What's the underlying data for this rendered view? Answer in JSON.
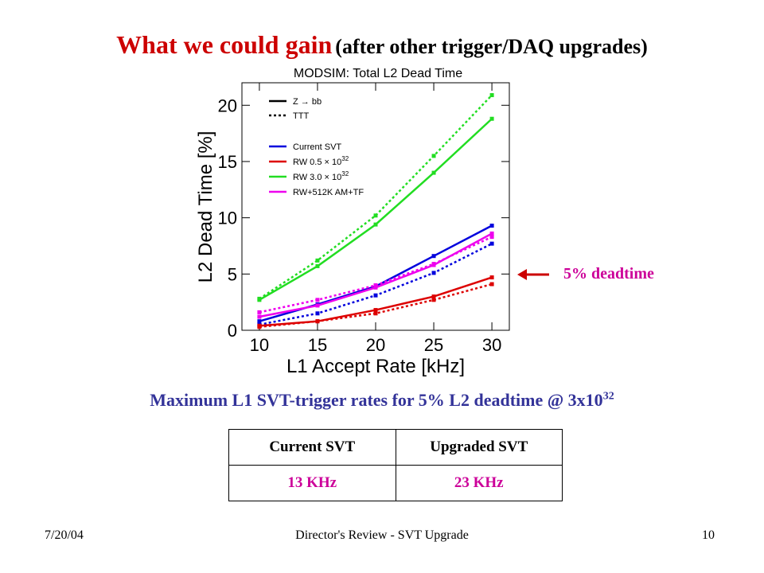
{
  "slide": {
    "title_main": "What we could gain",
    "title_sub": "(after other trigger/DAQ upgrades)",
    "annotation": "5% deadtime",
    "subtitle_text": "Maximum L1 SVT-trigger rates for 5% L2 deadtime @ 3x10",
    "subtitle_exp": "32",
    "table": {
      "headers": [
        "Current SVT",
        "Upgraded SVT"
      ],
      "values": [
        "13 KHz",
        "23 KHz"
      ]
    },
    "footer": {
      "date": "7/20/04",
      "center": "Director's Review - SVT Upgrade",
      "page": "10"
    }
  },
  "chart_data": {
    "type": "line",
    "title": "MODSIM: Total L2 Dead Time",
    "xlabel": "L1 Accept Rate [kHz]",
    "ylabel": "L2 Dead Time [%]",
    "x": [
      10,
      15,
      20,
      25,
      30
    ],
    "xlim": [
      8.5,
      31.5
    ],
    "ylim": [
      0,
      22
    ],
    "xticks": [
      10,
      15,
      20,
      25,
      30
    ],
    "yticks": [
      0,
      5,
      10,
      15,
      20
    ],
    "style_legend": [
      {
        "label": "Z → bb",
        "dash": "solid"
      },
      {
        "label": "TTT",
        "dash": "dotted"
      }
    ],
    "series": [
      {
        "name": "Current SVT",
        "color": "#0000dd",
        "solid": [
          0.8,
          2.3,
          3.9,
          6.6,
          9.3
        ],
        "dotted": [
          0.5,
          1.5,
          3.1,
          5.1,
          7.7
        ]
      },
      {
        "name": "RW 0.5 × 10^32",
        "color": "#dd0000",
        "solid": [
          0.4,
          0.8,
          1.8,
          3.0,
          4.7
        ],
        "dotted": [
          0.3,
          0.8,
          1.5,
          2.7,
          4.1
        ]
      },
      {
        "name": "RW 3.0 × 10^32",
        "color": "#22dd22",
        "solid": [
          2.7,
          5.7,
          9.4,
          14.0,
          18.8
        ],
        "dotted": [
          2.8,
          6.2,
          10.2,
          15.5,
          20.9
        ]
      },
      {
        "name": "RW+512K AM+TF",
        "color": "#ee00ee",
        "solid": [
          1.2,
          2.2,
          3.8,
          5.8,
          8.6
        ],
        "dotted": [
          1.6,
          2.7,
          4.0,
          5.9,
          8.3
        ]
      }
    ]
  }
}
